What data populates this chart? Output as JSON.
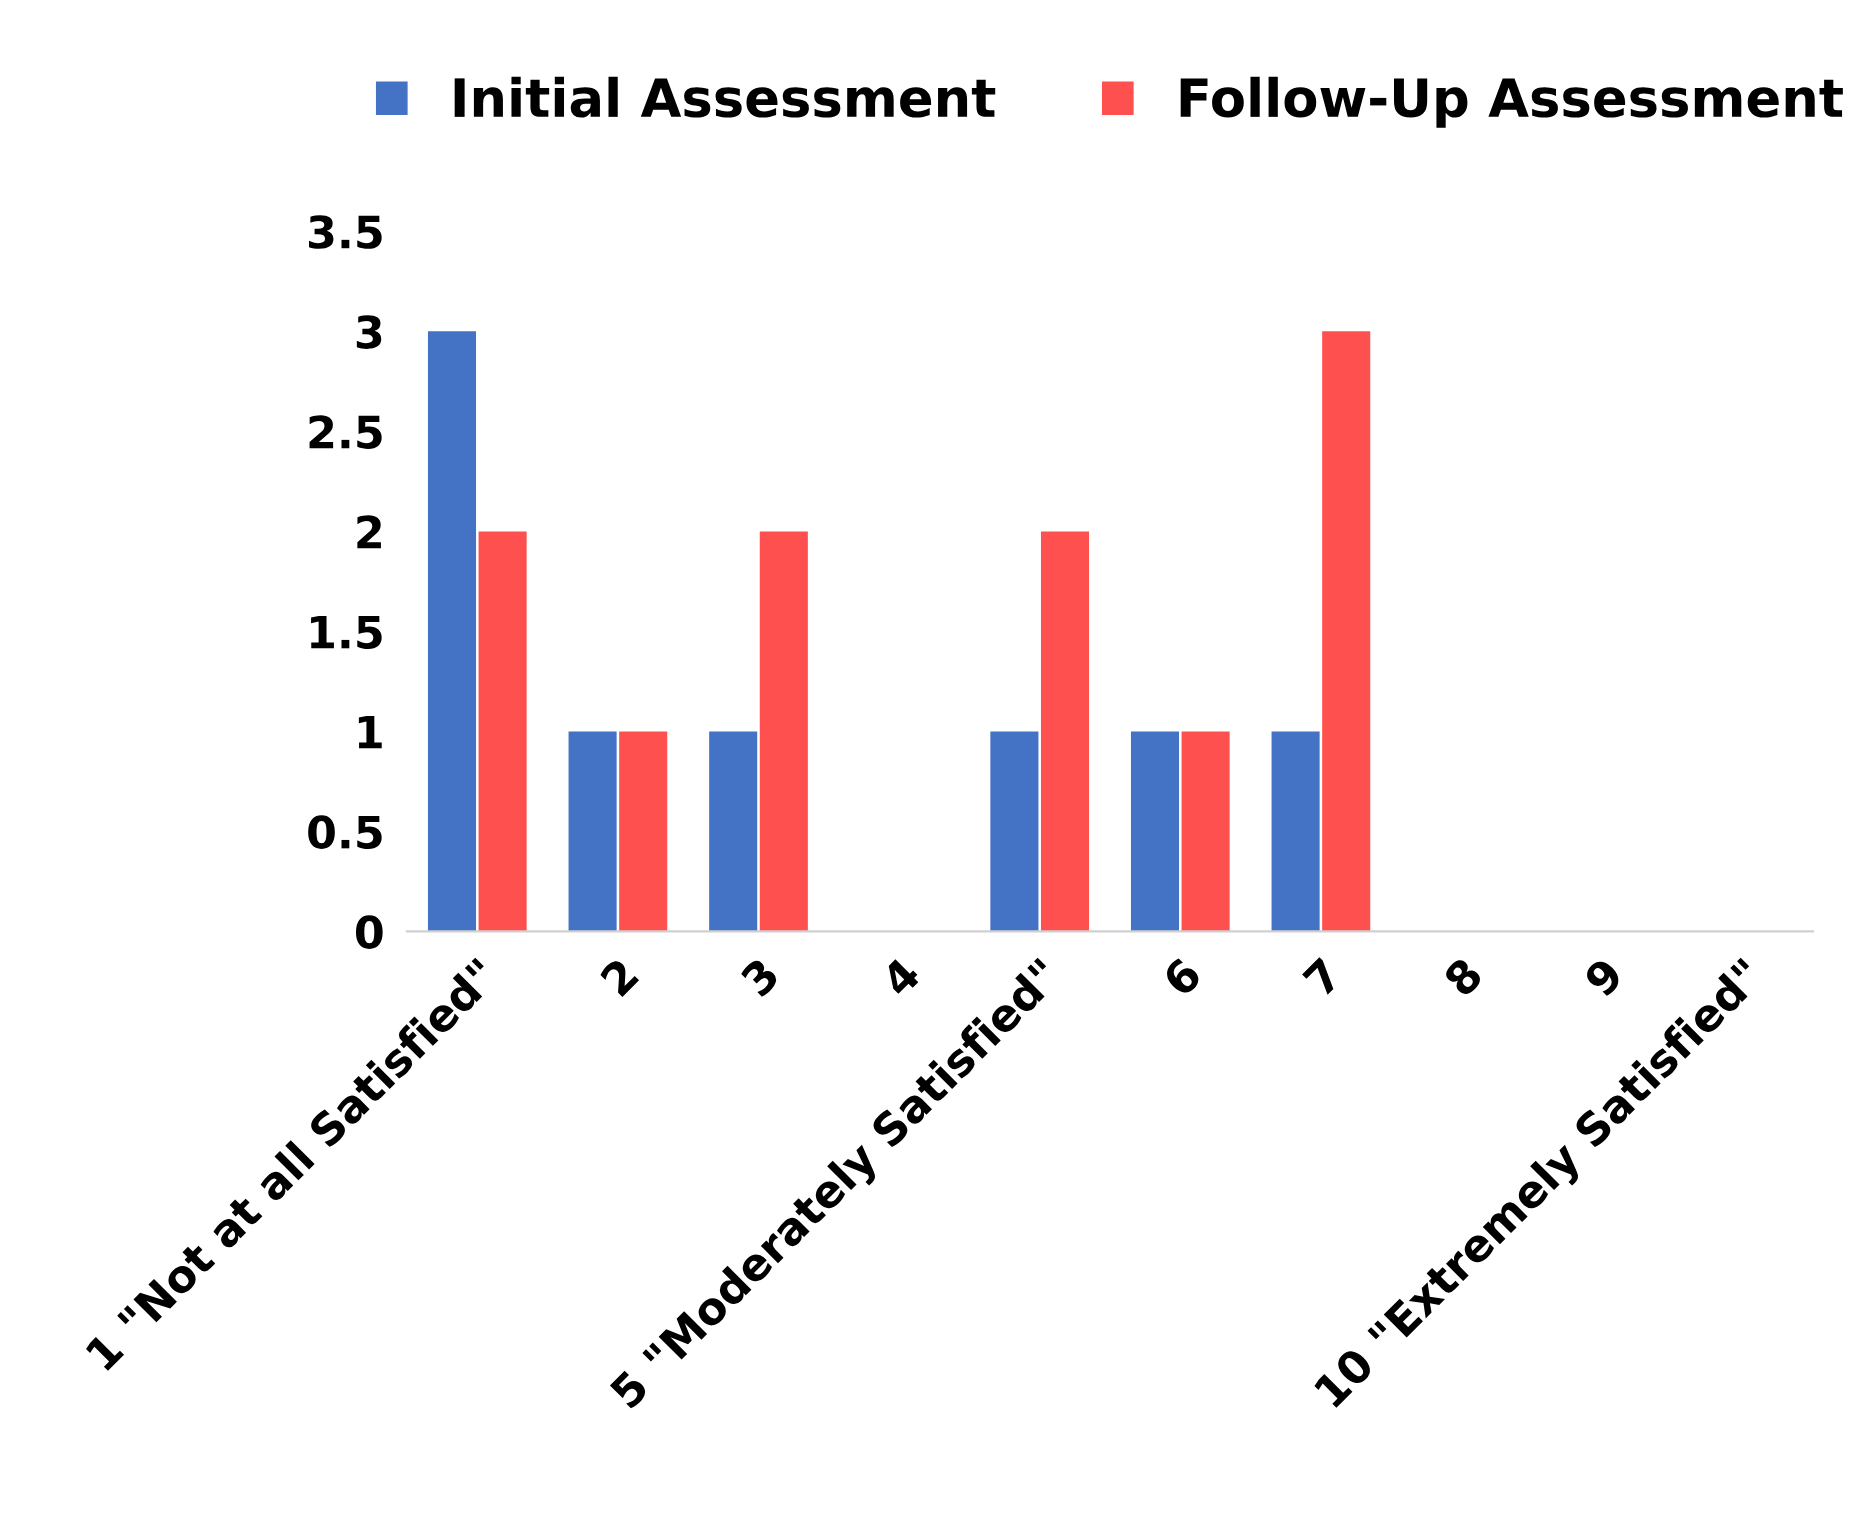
{
  "chart_data": {
    "type": "bar",
    "categories": [
      "1 \"Not at all Satisfied\"",
      "2",
      "3",
      "4",
      "5 \"Moderately Satisfied\"",
      "6",
      "7",
      "8",
      "9",
      "10 \"Extremely Satisfied\""
    ],
    "series": [
      {
        "name": "Initial Assessment",
        "color": "#4472c4",
        "values": [
          3,
          1,
          1,
          0,
          1,
          1,
          1,
          0,
          0,
          0
        ]
      },
      {
        "name": "Follow-Up Assessment",
        "color": "#ff5050",
        "values": [
          2,
          1,
          2,
          0,
          2,
          1,
          3,
          0,
          0,
          0
        ]
      }
    ],
    "ylim": [
      0,
      3.5
    ],
    "yticks": [
      0,
      0.5,
      1,
      1.5,
      2,
      2.5,
      3,
      3.5
    ],
    "grid": false,
    "legend": "top"
  }
}
